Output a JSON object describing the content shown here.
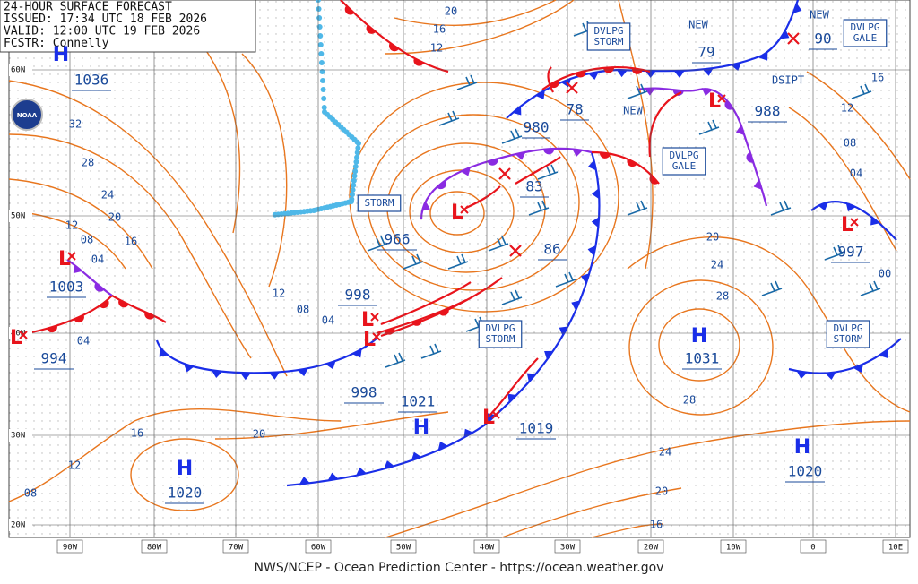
{
  "header": {
    "lines": [
      "24-HOUR SURFACE FORECAST",
      "ISSUED: 17:34 UTC 18 FEB 2026",
      "VALID:  12:00 UTC 19 FEB 2026",
      "FCSTR:  Connelly"
    ]
  },
  "logo": "NOAA",
  "footer": "NWS/NCEP - Ocean Prediction Center - https://ocean.weather.gov",
  "lat_labels": [
    "60N",
    "50N",
    "40N",
    "30N",
    "20N"
  ],
  "lon_labels": [
    "90W",
    "80W",
    "70W",
    "60W",
    "50W",
    "40W",
    "30W",
    "20W",
    "10W",
    "0",
    "10E"
  ],
  "centers": [
    {
      "symbol": "H",
      "pressure": "1036"
    },
    {
      "symbol": "L",
      "pressure": "1003"
    },
    {
      "symbol": "L",
      "pressure": "994"
    },
    {
      "symbol": "L",
      "pressure": "966"
    },
    {
      "symbol": "L",
      "pressure": "998"
    },
    {
      "symbol": "L",
      "pressure": "998"
    },
    {
      "symbol": "L",
      "pressure": "1019"
    },
    {
      "symbol": "H",
      "pressure": "1021"
    },
    {
      "symbol": "H",
      "pressure": "1031"
    },
    {
      "symbol": "H",
      "pressure": "1020"
    },
    {
      "symbol": "H",
      "pressure": "1020"
    },
    {
      "symbol": "L",
      "pressure": "997"
    },
    {
      "symbol": "L",
      "pressure": "988"
    }
  ],
  "new_positions": [
    "78",
    "83",
    "86",
    "980",
    "79",
    "90"
  ],
  "warnings": [
    "DVLPG STORM",
    "DVLPG GALE",
    "STORM",
    "DVLPG GALE",
    "DVLPG STORM",
    "DVLPG STORM"
  ],
  "notes": [
    "NEW",
    "NEW",
    "NEW",
    "DSIPT"
  ],
  "isobar_labels": [
    "20",
    "16",
    "12",
    "32",
    "28",
    "24",
    "20",
    "16",
    "12",
    "08",
    "04",
    "04",
    "12",
    "08",
    "04",
    "20",
    "24",
    "28",
    "28",
    "24",
    "20",
    "16",
    "20",
    "16",
    "12",
    "08",
    "16",
    "12",
    "08",
    "04",
    "00"
  ]
}
